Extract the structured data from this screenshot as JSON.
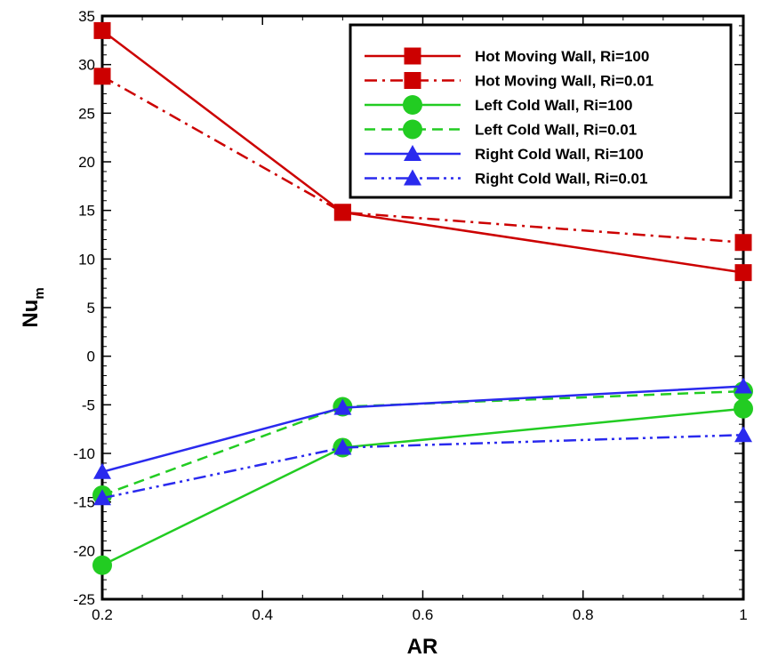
{
  "chart_data": {
    "type": "line",
    "xlabel": "AR",
    "ylabel": "Nu",
    "ylabel_subscript": "m",
    "xlim": [
      0.2,
      1
    ],
    "ylim": [
      -25,
      35
    ],
    "x_ticks": [
      0.2,
      0.4,
      0.6,
      0.8,
      1
    ],
    "x_tick_labels": [
      "0.2",
      "0.4",
      "0.6",
      "0.8",
      "1"
    ],
    "y_ticks": [
      -25,
      -20,
      -15,
      -10,
      -5,
      0,
      5,
      10,
      15,
      20,
      25,
      30,
      35
    ],
    "y_tick_labels": [
      "-25",
      "-20",
      "-15",
      "-10",
      "-5",
      "0",
      "5",
      "10",
      "15",
      "20",
      "25",
      "30",
      "35"
    ],
    "grid": false,
    "legend_position": "top-right",
    "x": [
      0.2,
      0.5,
      1
    ],
    "series": [
      {
        "name": "Hot Moving Wall, Ri=100",
        "values": [
          33.5,
          14.8,
          8.6
        ],
        "color": "#cc0000",
        "dash": "solid",
        "marker": "square"
      },
      {
        "name": "Hot Moving Wall, Ri=0.01",
        "values": [
          28.8,
          14.8,
          11.7
        ],
        "color": "#cc0000",
        "dash": "dashdot",
        "marker": "square"
      },
      {
        "name": "Left Cold Wall, Ri=100",
        "values": [
          -21.5,
          -9.4,
          -5.4
        ],
        "color": "#22cc22",
        "dash": "solid",
        "marker": "circle"
      },
      {
        "name": "Left Cold Wall, Ri=0.01",
        "values": [
          -14.3,
          -5.2,
          -3.6
        ],
        "color": "#22cc22",
        "dash": "dashed",
        "marker": "circle"
      },
      {
        "name": "Right Cold Wall, Ri=100",
        "values": [
          -11.9,
          -5.3,
          -3.1
        ],
        "color": "#2a2aee",
        "dash": "solid",
        "marker": "triangle"
      },
      {
        "name": "Right Cold Wall, Ri=0.01",
        "values": [
          -14.6,
          -9.4,
          -8.1
        ],
        "color": "#2a2aee",
        "dash": "dashdotdot",
        "marker": "triangle"
      }
    ]
  }
}
